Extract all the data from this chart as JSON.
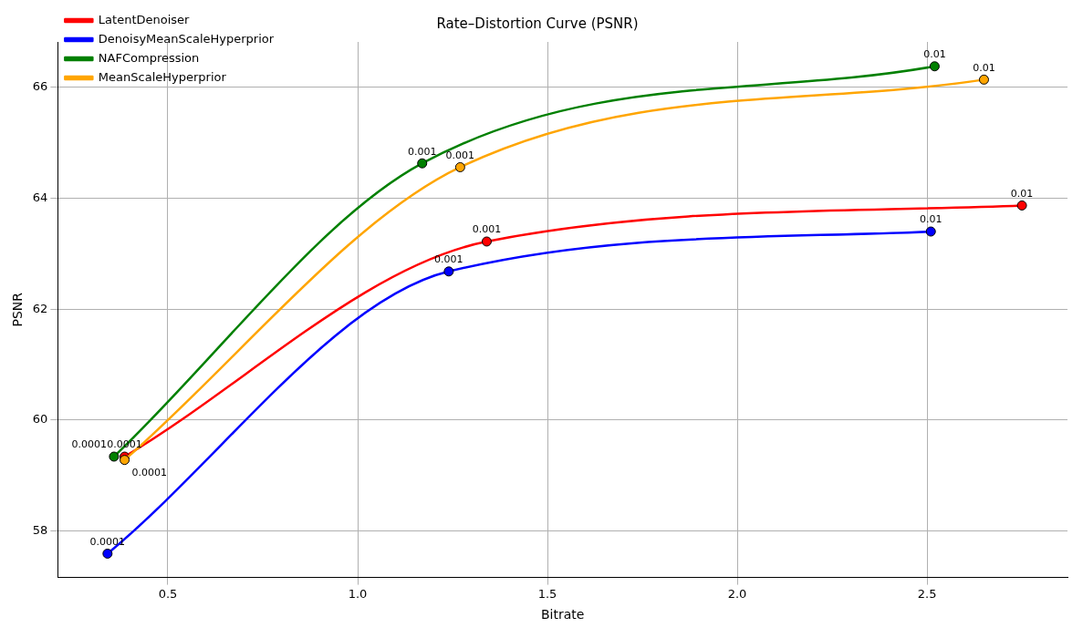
{
  "chart_data": {
    "type": "line",
    "title": "Rate–Distortion Curve (PSNR)",
    "xlabel": "Bitrate",
    "ylabel": "PSNR",
    "xlim": [
      0.21,
      2.87
    ],
    "ylim": [
      57.16,
      66.82
    ],
    "xticks": [
      0.5,
      {
        "value": 1,
        "label": "1.0"
      },
      1.5,
      {
        "value": 2,
        "label": "2.0"
      },
      2.5
    ],
    "yticks": [
      58,
      60,
      62,
      64,
      66
    ],
    "grid": true,
    "legend": "top left",
    "marker": "circle",
    "line_style": "solid",
    "series": [
      {
        "name": "LatentDenoiser",
        "color": "#ff0000",
        "x": [
          0.386,
          1.34,
          2.75
        ],
        "values": [
          59.34,
          63.22,
          63.87
        ]
      },
      {
        "name": "DenoisyMeanScaleHyperprior",
        "color": "#0000ff",
        "x": [
          0.341,
          1.24,
          2.51
        ],
        "values": [
          57.59,
          62.68,
          63.4
        ]
      },
      {
        "name": "NAFCompression",
        "color": "#008000",
        "x": [
          0.358,
          1.17,
          2.52
        ],
        "values": [
          59.34,
          64.63,
          66.38
        ]
      },
      {
        "name": "MeanScaleHyperprior",
        "color": "#ffa500",
        "x": [
          0.386,
          1.27,
          2.65
        ],
        "values": [
          59.28,
          64.56,
          66.14
        ]
      }
    ],
    "annotations": [
      {
        "text": "0.0001",
        "x": 0.386,
        "y": 59.34
      },
      {
        "text": "0.001",
        "x": 1.34,
        "y": 63.22
      },
      {
        "text": "0.01",
        "x": 2.75,
        "y": 63.87
      },
      {
        "text": "0.0001",
        "x": 0.341,
        "y": 57.59
      },
      {
        "text": "0.001",
        "x": 1.24,
        "y": 62.68
      },
      {
        "text": "0.01",
        "x": 2.51,
        "y": 63.4
      },
      {
        "text": "0.0001",
        "x": 0.358,
        "y": 59.34
      },
      {
        "text": "0.001",
        "x": 1.17,
        "y": 64.63
      },
      {
        "text": "0.01",
        "x": 2.52,
        "y": 66.38
      },
      {
        "text": "0.0001",
        "x": 0.386,
        "y": 59.28
      },
      {
        "text": "0.001",
        "x": 1.27,
        "y": 64.56
      },
      {
        "text": "0.01",
        "x": 2.65,
        "y": 66.14
      }
    ]
  }
}
